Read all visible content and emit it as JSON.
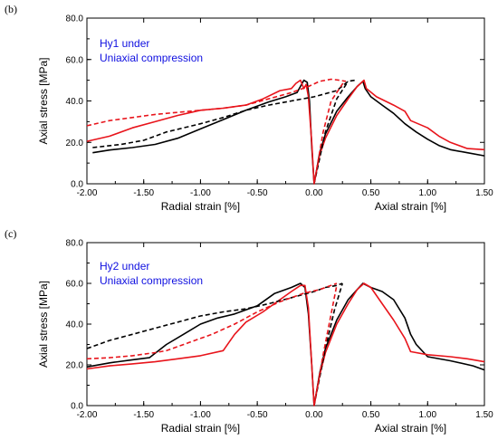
{
  "colors": {
    "series_black": "#000000",
    "series_red": "#e8141b",
    "annotation": "#1010e0"
  },
  "chart_data": [
    {
      "type": "line",
      "panel_label": "(b)",
      "annotation": [
        "Hy1 under",
        "Uniaxial compression"
      ],
      "ylabel": "Axial stress [MPa]",
      "xlabel_left": "Radial strain [%]",
      "xlabel_right": "Axial strain [%]",
      "xlim": [
        -2.0,
        1.5
      ],
      "ylim": [
        0,
        80
      ],
      "x_ticks": [
        -2.0,
        -1.5,
        -1.0,
        -0.5,
        0.0,
        0.5,
        1.0,
        1.5
      ],
      "x_tick_labels": [
        "-2.00",
        "-1.50",
        "-1.00",
        "-0.50",
        "0.00",
        "0.50",
        "1.00",
        "1.50"
      ],
      "y_ticks": [
        0,
        20,
        40,
        60,
        80
      ],
      "y_tick_labels": [
        "0.0",
        "20.0",
        "40.0",
        "60.0",
        "80.0"
      ],
      "grid": false,
      "series": [
        {
          "color": "black",
          "dash": false,
          "points": [
            [
              -1.95,
              15
            ],
            [
              -1.8,
              16.3
            ],
            [
              -1.6,
              17.5
            ],
            [
              -1.4,
              19
            ],
            [
              -1.2,
              22
            ],
            [
              -1.0,
              26.5
            ],
            [
              -0.8,
              31
            ],
            [
              -0.6,
              35.5
            ],
            [
              -0.4,
              39.5
            ],
            [
              -0.25,
              42
            ],
            [
              -0.15,
              44
            ],
            [
              -0.12,
              47
            ],
            [
              -0.09,
              50
            ],
            [
              -0.06,
              49
            ],
            [
              -0.04,
              40
            ],
            [
              -0.02,
              18
            ],
            [
              0,
              0
            ],
            [
              0.05,
              15
            ],
            [
              0.1,
              24
            ],
            [
              0.2,
              35
            ],
            [
              0.3,
              42
            ],
            [
              0.38,
              47
            ],
            [
              0.43,
              49.5
            ],
            [
              0.45,
              46
            ],
            [
              0.5,
              42
            ],
            [
              0.6,
              38
            ],
            [
              0.7,
              34
            ],
            [
              0.8,
              29
            ],
            [
              0.9,
              25
            ],
            [
              1.0,
              21.5
            ],
            [
              1.1,
              18.5
            ],
            [
              1.2,
              16.5
            ],
            [
              1.35,
              15
            ],
            [
              1.5,
              13.5
            ]
          ]
        },
        {
          "color": "red",
          "dash": false,
          "points": [
            [
              -2.0,
              20.5
            ],
            [
              -1.8,
              23
            ],
            [
              -1.6,
              27
            ],
            [
              -1.4,
              30
            ],
            [
              -1.2,
              33
            ],
            [
              -1.0,
              35.5
            ],
            [
              -0.8,
              36.5
            ],
            [
              -0.6,
              38
            ],
            [
              -0.45,
              41
            ],
            [
              -0.3,
              45
            ],
            [
              -0.2,
              46
            ],
            [
              -0.16,
              48.5
            ],
            [
              -0.12,
              50
            ],
            [
              -0.09,
              46
            ],
            [
              -0.07,
              48
            ],
            [
              -0.05,
              42
            ],
            [
              -0.02,
              20
            ],
            [
              0,
              0
            ],
            [
              0.05,
              14
            ],
            [
              0.1,
              22
            ],
            [
              0.2,
              33
            ],
            [
              0.3,
              41
            ],
            [
              0.38,
              47
            ],
            [
              0.44,
              50
            ],
            [
              0.46,
              46
            ],
            [
              0.55,
              42
            ],
            [
              0.7,
              38
            ],
            [
              0.8,
              35
            ],
            [
              0.85,
              30.5
            ],
            [
              1.0,
              27
            ],
            [
              1.1,
              23
            ],
            [
              1.2,
              20
            ],
            [
              1.35,
              17
            ],
            [
              1.5,
              16.5
            ]
          ]
        },
        {
          "color": "black",
          "dash": true,
          "points": [
            [
              -1.95,
              17.5
            ],
            [
              -1.7,
              19
            ],
            [
              -1.5,
              21
            ],
            [
              -1.3,
              25
            ],
            [
              -1.0,
              29
            ],
            [
              -0.8,
              32
            ],
            [
              -0.6,
              35.5
            ],
            [
              -0.4,
              38
            ],
            [
              -0.2,
              40
            ],
            [
              0.0,
              42
            ],
            [
              0.2,
              45
            ],
            [
              0.3,
              49.5
            ],
            [
              0.36,
              50
            ]
          ]
        },
        {
          "color": "red",
          "dash": true,
          "points": [
            [
              -2.0,
              28
            ],
            [
              -1.8,
              30.5
            ],
            [
              -1.6,
              32
            ],
            [
              -1.4,
              33.5
            ],
            [
              -1.2,
              34.5
            ],
            [
              -1.0,
              35.5
            ],
            [
              -0.8,
              36.5
            ],
            [
              -0.6,
              38
            ],
            [
              -0.4,
              41
            ],
            [
              -0.2,
              44
            ],
            [
              -0.05,
              47
            ],
            [
              0.05,
              49.5
            ],
            [
              0.15,
              50.5
            ],
            [
              0.22,
              50
            ],
            [
              0.28,
              49.5
            ]
          ]
        },
        {
          "color": "black",
          "dash": true,
          "points": [
            [
              0,
              0
            ],
            [
              0.1,
              25
            ],
            [
              0.2,
              41
            ],
            [
              0.3,
              49.5
            ]
          ]
        },
        {
          "color": "red",
          "dash": true,
          "points": [
            [
              0,
              0
            ],
            [
              0.08,
              25
            ],
            [
              0.15,
              40
            ],
            [
              0.26,
              49
            ]
          ]
        }
      ]
    },
    {
      "type": "line",
      "panel_label": "(c)",
      "annotation": [
        "Hy2 under",
        "Uniaxial compression"
      ],
      "ylabel": "Axial stress [MPa]",
      "xlabel_left": "Radial strain [%]",
      "xlabel_right": "Axial strain [%]",
      "xlim": [
        -2.0,
        1.5
      ],
      "ylim": [
        0,
        80
      ],
      "x_ticks": [
        -2.0,
        -1.5,
        -1.0,
        -0.5,
        0.0,
        0.5,
        1.0,
        1.5
      ],
      "x_tick_labels": [
        "-2.00",
        "-1.50",
        "-1.00",
        "-0.50",
        "0.00",
        "0.50",
        "1.00",
        "1.50"
      ],
      "y_ticks": [
        0,
        20,
        40,
        60,
        80
      ],
      "y_tick_labels": [
        "0.0",
        "20.0",
        "40.0",
        "60.0",
        "80.0"
      ],
      "grid": false,
      "series": [
        {
          "color": "black",
          "dash": false,
          "points": [
            [
              -2.0,
              19
            ],
            [
              -1.8,
              21
            ],
            [
              -1.6,
              22.5
            ],
            [
              -1.45,
              23.5
            ],
            [
              -1.3,
              30
            ],
            [
              -1.15,
              35
            ],
            [
              -1.0,
              40
            ],
            [
              -0.85,
              43
            ],
            [
              -0.7,
              45
            ],
            [
              -0.5,
              49
            ],
            [
              -0.35,
              55
            ],
            [
              -0.2,
              58
            ],
            [
              -0.12,
              60
            ],
            [
              -0.08,
              58
            ],
            [
              -0.05,
              45
            ],
            [
              -0.02,
              20
            ],
            [
              0,
              0
            ],
            [
              0.05,
              16
            ],
            [
              0.1,
              28
            ],
            [
              0.2,
              42
            ],
            [
              0.3,
              52
            ],
            [
              0.38,
              57
            ],
            [
              0.43,
              60
            ],
            [
              0.5,
              58
            ],
            [
              0.6,
              56
            ],
            [
              0.7,
              52
            ],
            [
              0.8,
              43
            ],
            [
              0.85,
              35
            ],
            [
              0.9,
              30
            ],
            [
              1.0,
              24
            ],
            [
              1.2,
              22
            ],
            [
              1.4,
              19.5
            ],
            [
              1.5,
              17.5
            ]
          ]
        },
        {
          "color": "red",
          "dash": false,
          "points": [
            [
              -2.0,
              18
            ],
            [
              -1.8,
              19.5
            ],
            [
              -1.6,
              20.5
            ],
            [
              -1.4,
              21.5
            ],
            [
              -1.2,
              23
            ],
            [
              -1.0,
              24.5
            ],
            [
              -0.8,
              27
            ],
            [
              -0.7,
              35
            ],
            [
              -0.6,
              41
            ],
            [
              -0.45,
              46
            ],
            [
              -0.3,
              52
            ],
            [
              -0.2,
              56
            ],
            [
              -0.12,
              59
            ],
            [
              -0.08,
              59
            ],
            [
              -0.05,
              48
            ],
            [
              -0.02,
              20
            ],
            [
              0,
              0
            ],
            [
              0.05,
              15
            ],
            [
              0.1,
              26
            ],
            [
              0.2,
              40
            ],
            [
              0.3,
              50
            ],
            [
              0.38,
              57
            ],
            [
              0.44,
              60
            ],
            [
              0.5,
              58
            ],
            [
              0.6,
              50
            ],
            [
              0.7,
              42
            ],
            [
              0.8,
              33
            ],
            [
              0.85,
              26.5
            ],
            [
              1.0,
              25
            ],
            [
              1.2,
              24
            ],
            [
              1.35,
              23
            ],
            [
              1.5,
              21.5
            ]
          ]
        },
        {
          "color": "black",
          "dash": true,
          "points": [
            [
              -2.0,
              28
            ],
            [
              -1.8,
              32
            ],
            [
              -1.6,
              35
            ],
            [
              -1.4,
              38
            ],
            [
              -1.2,
              41
            ],
            [
              -1.0,
              44
            ],
            [
              -0.8,
              46
            ],
            [
              -0.6,
              47.5
            ],
            [
              -0.4,
              50
            ],
            [
              -0.2,
              53
            ],
            [
              0.0,
              56
            ],
            [
              0.1,
              58
            ],
            [
              0.2,
              59
            ],
            [
              0.25,
              60
            ]
          ]
        },
        {
          "color": "red",
          "dash": true,
          "points": [
            [
              -2.0,
              23
            ],
            [
              -1.8,
              23.5
            ],
            [
              -1.6,
              24.5
            ],
            [
              -1.4,
              26
            ],
            [
              -1.3,
              27
            ],
            [
              -1.1,
              31
            ],
            [
              -0.9,
              35
            ],
            [
              -0.7,
              40
            ],
            [
              -0.5,
              46
            ],
            [
              -0.3,
              51
            ],
            [
              -0.1,
              55
            ],
            [
              0.05,
              57
            ],
            [
              0.15,
              59
            ],
            [
              0.2,
              60
            ]
          ]
        },
        {
          "color": "black",
          "dash": true,
          "points": [
            [
              0,
              0
            ],
            [
              0.1,
              28
            ],
            [
              0.18,
              47
            ],
            [
              0.25,
              60
            ]
          ]
        },
        {
          "color": "red",
          "dash": true,
          "points": [
            [
              0,
              0
            ],
            [
              0.08,
              25
            ],
            [
              0.15,
              45
            ],
            [
              0.2,
              59
            ]
          ]
        }
      ]
    }
  ]
}
